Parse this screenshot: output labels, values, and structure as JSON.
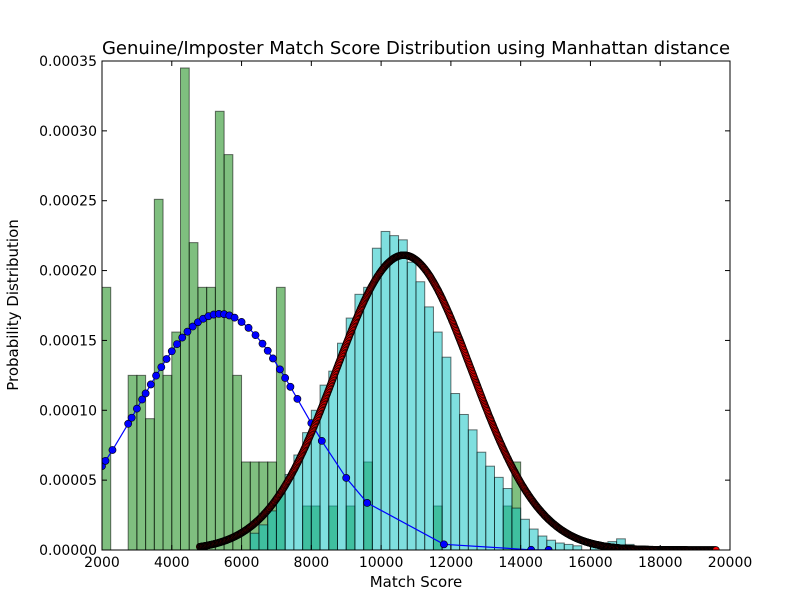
{
  "chart_data": {
    "type": "bar",
    "title": "Genuine/Imposter Match Score Distribution using Manhattan distance",
    "xlabel": "Match Score",
    "ylabel": "Probability Distribution",
    "xlim": [
      2000,
      20000
    ],
    "ylim": [
      0,
      0.00035
    ],
    "xticks": [
      "2000",
      "4000",
      "6000",
      "8000",
      "10000",
      "12000",
      "14000",
      "16000",
      "18000",
      "20000"
    ],
    "yticks": [
      "0.00000",
      "0.00005",
      "0.00010",
      "0.00015",
      "0.00020",
      "0.00025",
      "0.00030",
      "0.00035"
    ],
    "grid": false,
    "legend": "none",
    "colors": {
      "genuine_bars": "#008000",
      "imposter_bars": "#00bfbf",
      "genuine_curve": "#0000ff",
      "imposter_curve_markers": "#ff0000",
      "imposter_curve_line": "#000000"
    },
    "genuine_histogram": {
      "bin_width": 250,
      "bins": [
        [
          2000,
          0.000188
        ],
        [
          2750,
          0.000125
        ],
        [
          3000,
          0.000125
        ],
        [
          3250,
          9.4e-05
        ],
        [
          3500,
          0.000251
        ],
        [
          3750,
          0.000125
        ],
        [
          4000,
          0.000156
        ],
        [
          4250,
          0.000345
        ],
        [
          4500,
          0.00022
        ],
        [
          4750,
          0.000188
        ],
        [
          5000,
          0.000188
        ],
        [
          5250,
          0.000314
        ],
        [
          5500,
          0.000283
        ],
        [
          5750,
          0.000125
        ],
        [
          6000,
          6.3e-05
        ],
        [
          6250,
          6.3e-05
        ],
        [
          6500,
          6.3e-05
        ],
        [
          6750,
          6.3e-05
        ],
        [
          7000,
          0.000188
        ],
        [
          7750,
          3.15e-05
        ],
        [
          8000,
          3.15e-05
        ],
        [
          8500,
          3.15e-05
        ],
        [
          9000,
          3.15e-05
        ],
        [
          9500,
          6.3e-05
        ],
        [
          11500,
          3.15e-05
        ],
        [
          13500,
          3.15e-05
        ],
        [
          13750,
          6.3e-05
        ]
      ]
    },
    "imposter_histogram": {
      "bin_width": 250,
      "bins": [
        [
          6250,
          1.2e-05
        ],
        [
          6500,
          1.8e-05
        ],
        [
          6750,
          2.8e-05
        ],
        [
          7000,
          4e-05
        ],
        [
          7250,
          5.4e-05
        ],
        [
          7500,
          6.8e-05
        ],
        [
          7750,
          8.4e-05
        ],
        [
          8000,
          0.0001
        ],
        [
          8250,
          0.000118
        ],
        [
          8500,
          0.000128
        ],
        [
          8750,
          0.000148
        ],
        [
          9000,
          0.000166
        ],
        [
          9250,
          0.000183
        ],
        [
          9500,
          0.000188
        ],
        [
          9750,
          0.000216
        ],
        [
          10000,
          0.000228
        ],
        [
          10250,
          0.000225
        ],
        [
          10500,
          0.000222
        ],
        [
          10750,
          0.000206
        ],
        [
          11000,
          0.000192
        ],
        [
          11250,
          0.000174
        ],
        [
          11500,
          0.000156
        ],
        [
          11750,
          0.000138
        ],
        [
          12000,
          0.000112
        ],
        [
          12250,
          9.7e-05
        ],
        [
          12500,
          8.6e-05
        ],
        [
          12750,
          7e-05
        ],
        [
          13000,
          6e-05
        ],
        [
          13250,
          5.2e-05
        ],
        [
          13500,
          4.4e-05
        ],
        [
          13750,
          3e-05
        ],
        [
          14000,
          2.2e-05
        ],
        [
          14250,
          1.5e-05
        ],
        [
          14500,
          1e-05
        ],
        [
          14750,
          7e-06
        ],
        [
          15000,
          5e-06
        ],
        [
          15250,
          4e-06
        ],
        [
          15500,
          3e-06
        ],
        [
          16000,
          6e-06
        ],
        [
          16500,
          6e-06
        ],
        [
          16750,
          8e-06
        ],
        [
          17000,
          4e-06
        ],
        [
          17250,
          2e-06
        ]
      ]
    },
    "genuine_curve": {
      "mean": 5380,
      "std": 2350,
      "peak": 0.000169,
      "x": [
        2000,
        2100,
        2300,
        2750,
        2850,
        3000,
        3150,
        3250,
        3400,
        3550,
        3700,
        3850,
        4000,
        4150,
        4300,
        4450,
        4600,
        4750,
        4900,
        5050,
        5200,
        5350,
        5500,
        5650,
        5800,
        6000,
        6200,
        6400,
        6600,
        6750,
        6900,
        7100,
        7250,
        7400,
        7600,
        8000,
        8300,
        9000,
        9600,
        11800,
        14300,
        14800
      ]
    },
    "imposter_curve": {
      "mean": 10650,
      "std": 1950,
      "peak": 0.000211,
      "x_start": 4800,
      "x_end": 19600
    }
  }
}
